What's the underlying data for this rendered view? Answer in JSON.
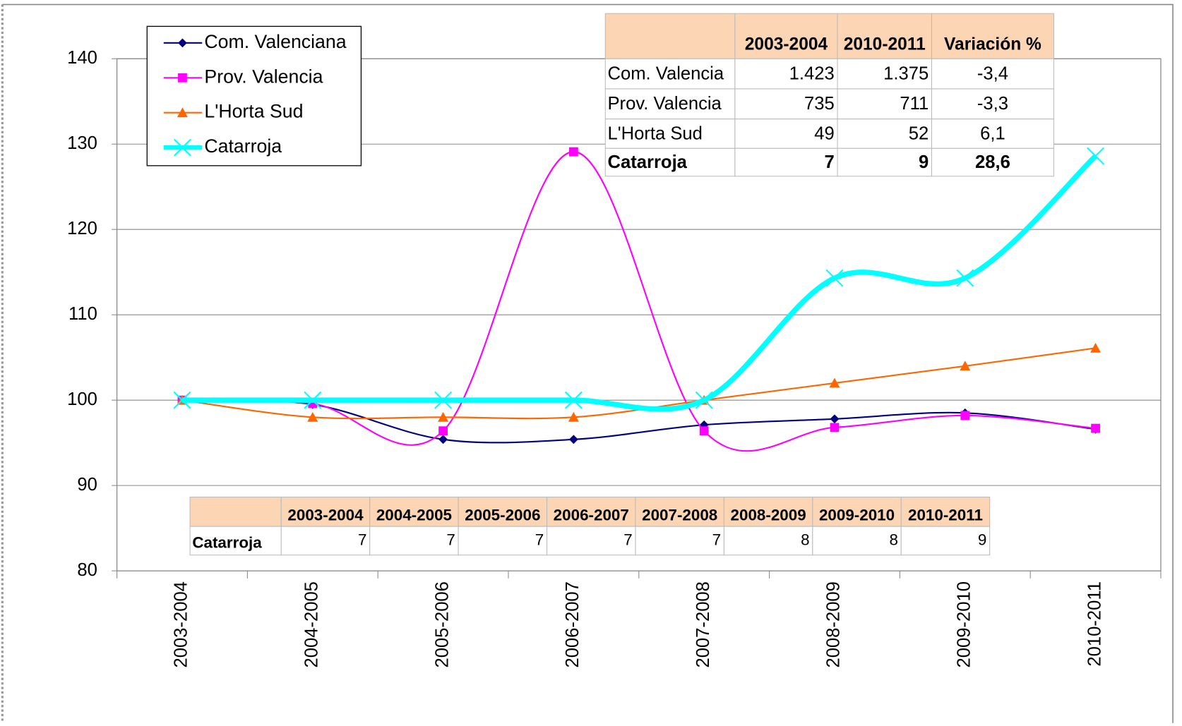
{
  "chart_data": {
    "type": "line",
    "categories": [
      "2003-2004",
      "2004-2005",
      "2005-2006",
      "2006-2007",
      "2007-2008",
      "2008-2009",
      "2009-2010",
      "2010-2011"
    ],
    "series": [
      {
        "name": "Com. Valenciana",
        "color": "#000080",
        "marker": "diamond",
        "values": [
          100,
          99.5,
          95.4,
          95.4,
          97.1,
          97.8,
          98.5,
          96.6
        ]
      },
      {
        "name": "Prov. Valencia",
        "color": "#ff00ff",
        "marker": "square",
        "values": [
          100,
          99.6,
          96.4,
          129.1,
          96.4,
          96.8,
          98.2,
          96.7
        ]
      },
      {
        "name": "L'Horta Sud",
        "color": "#ff6600",
        "marker": "triangle",
        "values": [
          100,
          98,
          98,
          98,
          100,
          102,
          104,
          106.1
        ]
      },
      {
        "name": "Catarroja",
        "color": "#00ffff",
        "marker": "x",
        "values": [
          100,
          100,
          100,
          100,
          100,
          114.3,
          114.3,
          128.6
        ]
      }
    ],
    "ylim": [
      80,
      140
    ],
    "yticks": [
      80,
      90,
      100,
      110,
      120,
      130,
      140
    ],
    "grid": true,
    "legend": "top-left",
    "smooth": true
  },
  "summary_table": {
    "header": [
      "2003-2004",
      "2010-2011",
      "Variación %"
    ],
    "rows": [
      {
        "label": "Com. Valencia",
        "cells": [
          "1.423",
          "1.375",
          "-3,4"
        ]
      },
      {
        "label": "Prov. Valencia",
        "cells": [
          "735",
          "711",
          "-3,3"
        ]
      },
      {
        "label": "L'Horta Sud",
        "cells": [
          "49",
          "52",
          "6,1"
        ]
      },
      {
        "label": "Catarroja",
        "cells": [
          "7",
          "9",
          "28,6"
        ]
      }
    ]
  },
  "detail_table": {
    "header": [
      "2003-2004",
      "2004-2005",
      "2005-2006",
      "2006-2007",
      "2007-2008",
      "2008-2009",
      "2009-2010",
      "2010-2011"
    ],
    "row_label": "Catarroja",
    "cells": [
      "7",
      "7",
      "7",
      "7",
      "7",
      "8",
      "8",
      "9"
    ]
  }
}
